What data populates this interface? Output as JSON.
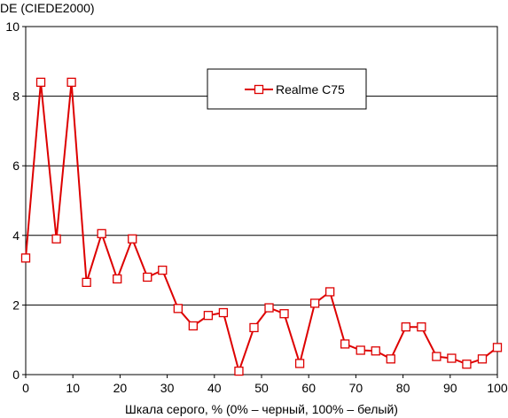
{
  "chart_data": {
    "type": "line",
    "ylabel": "DE (CIEDE2000)",
    "xlabel": "Шкала серого, % (0% – черный, 100% – белый)",
    "xlim": [
      0,
      100
    ],
    "ylim": [
      0,
      10
    ],
    "xticks": [
      0,
      10,
      20,
      30,
      40,
      50,
      60,
      70,
      80,
      90,
      100
    ],
    "yticks": [
      0,
      2,
      4,
      6,
      8,
      10
    ],
    "grid": "horizontal",
    "legend_position": "top-center",
    "series": [
      {
        "name": "Realme C75",
        "color": "#dd0000",
        "marker": "open-square",
        "x": [
          0,
          3.2,
          6.5,
          9.7,
          12.9,
          16.1,
          19.4,
          22.6,
          25.8,
          29.0,
          32.3,
          35.5,
          38.7,
          41.9,
          45.2,
          48.4,
          51.6,
          54.8,
          58.1,
          61.3,
          64.5,
          67.7,
          71.0,
          74.2,
          77.4,
          80.6,
          83.9,
          87.1,
          90.3,
          93.5,
          96.8,
          100
        ],
        "y": [
          3.35,
          8.4,
          3.9,
          8.4,
          2.65,
          4.05,
          2.75,
          3.9,
          2.8,
          3.0,
          1.9,
          1.4,
          1.7,
          1.78,
          0.1,
          1.35,
          1.92,
          1.75,
          0.32,
          2.05,
          2.38,
          0.88,
          0.7,
          0.68,
          0.45,
          1.37,
          1.37,
          0.52,
          0.47,
          0.3,
          0.45,
          0.78
        ]
      }
    ]
  }
}
